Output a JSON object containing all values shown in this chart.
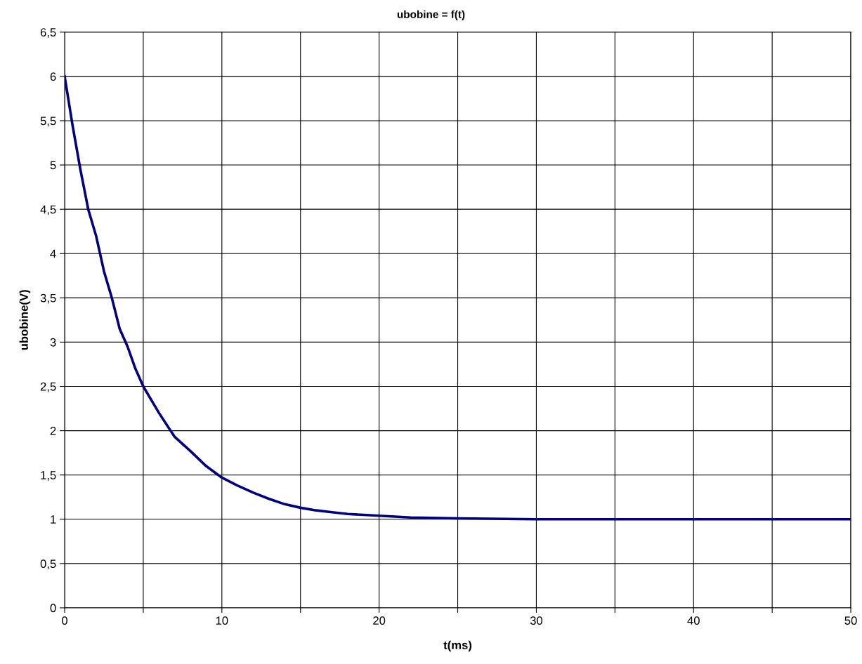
{
  "chart_data": {
    "type": "line",
    "title": "ubobine = f(t)",
    "xlabel": "t(ms)",
    "ylabel": "ubobine(V)",
    "x": [
      0,
      0.5,
      1,
      1.5,
      2,
      2.5,
      3,
      3.5,
      4,
      4.5,
      5,
      6,
      7,
      8,
      9,
      10,
      11,
      12,
      13,
      14,
      15,
      16,
      17,
      18,
      19,
      20,
      21,
      22,
      25,
      30,
      50
    ],
    "series": [
      {
        "color": "#000080",
        "values": [
          6,
          5.45,
          4.95,
          4.5,
          4.2,
          3.8,
          3.5,
          3.15,
          2.95,
          2.7,
          2.5,
          2.2,
          1.93,
          1.77,
          1.6,
          1.47,
          1.38,
          1.3,
          1.23,
          1.17,
          1.13,
          1.1,
          1.08,
          1.06,
          1.05,
          1.04,
          1.03,
          1.02,
          1.01,
          1.0,
          1.0
        ]
      }
    ],
    "xlim": [
      0,
      50
    ],
    "ylim": [
      0,
      6.5
    ],
    "xticks": [
      0,
      {
        "value": 5,
        "label": null
      },
      10,
      {
        "value": 15,
        "label": null
      },
      20,
      {
        "value": 25,
        "label": null
      },
      30,
      {
        "value": 35,
        "label": null
      },
      40,
      {
        "value": 45,
        "label": null
      },
      50
    ],
    "yticks": [
      0,
      {
        "value": 0.5,
        "label": "0,5"
      },
      1,
      {
        "value": 1.5,
        "label": "1,5"
      },
      2,
      {
        "value": 2.5,
        "label": "2,5"
      },
      3,
      {
        "value": 3.5,
        "label": "3,5"
      },
      4,
      {
        "value": 4.5,
        "label": "4,5"
      },
      5,
      {
        "value": 5.5,
        "label": "5,5"
      },
      6,
      {
        "value": 6.5,
        "label": "6,5"
      }
    ],
    "grid": true,
    "marker": "none",
    "line_style": "solid",
    "legend": false
  }
}
